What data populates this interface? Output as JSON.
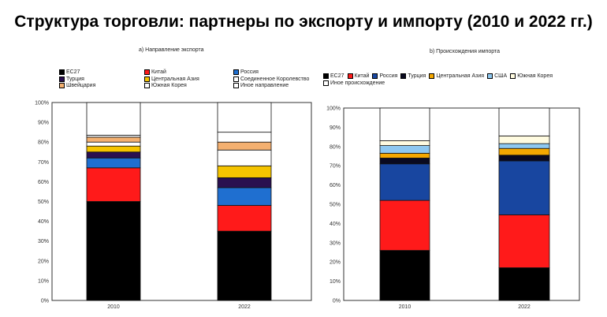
{
  "title": "Структура торговли: партнеры по экспорту и импорту (2010 и 2022 гг.)",
  "chart_data": [
    {
      "type": "bar",
      "stacked": true,
      "title": "a) Направление экспорта",
      "categories": [
        "2010",
        "2022"
      ],
      "ylim": [
        0,
        100
      ],
      "yticks": [
        "0%",
        "10%",
        "20%",
        "30%",
        "40%",
        "50%",
        "60%",
        "70%",
        "80%",
        "90%",
        "100%"
      ],
      "legend_placement": "top",
      "series": [
        {
          "name": "ЕС27",
          "color": "#000000",
          "values": [
            50,
            35
          ]
        },
        {
          "name": "Китай",
          "color": "#ff1a1a",
          "values": [
            17,
            13
          ]
        },
        {
          "name": "Россия",
          "color": "#1f6fd0",
          "values": [
            5,
            9
          ]
        },
        {
          "name": "Турция",
          "color": "#2a1050",
          "values": [
            3,
            5
          ]
        },
        {
          "name": "Центральная Азия",
          "color": "#f5c400",
          "values": [
            3,
            6
          ]
        },
        {
          "name": "Соединенное Королевство",
          "color": "#ffffff",
          "values": [
            2,
            8
          ]
        },
        {
          "name": "Швейцария",
          "color": "#f4b070",
          "values": [
            2.5,
            4
          ]
        },
        {
          "name": "Южная Корея",
          "color": "#ffffff",
          "values": [
            1,
            5
          ]
        },
        {
          "name": "Иное направление",
          "color": "#ffffff",
          "values": [
            16.5,
            15
          ]
        }
      ]
    },
    {
      "type": "bar",
      "stacked": true,
      "title": "b) Происхождения импорта",
      "categories": [
        "2010",
        "2022"
      ],
      "ylim": [
        0,
        100
      ],
      "yticks": [
        "0%",
        "10%",
        "20%",
        "30%",
        "40%",
        "50%",
        "60%",
        "70%",
        "80%",
        "90%",
        "100%"
      ],
      "legend_placement": "top",
      "series": [
        {
          "name": "ЕС27",
          "color": "#000000",
          "values": [
            26,
            17
          ]
        },
        {
          "name": "Китай",
          "color": "#ff1a1a",
          "values": [
            26,
            27.5
          ]
        },
        {
          "name": "Россия",
          "color": "#1846a0",
          "values": [
            19,
            28
          ]
        },
        {
          "name": "Турция",
          "color": "#0a0a20",
          "values": [
            3,
            3
          ]
        },
        {
          "name": "Центральная Азия",
          "color": "#f5a800",
          "values": [
            2.5,
            3.5
          ]
        },
        {
          "name": "США",
          "color": "#8ec8f0",
          "values": [
            4,
            2.5
          ]
        },
        {
          "name": "Южная Корея",
          "color": "#fffbe0",
          "values": [
            2.5,
            4
          ]
        },
        {
          "name": "Иное происхождение",
          "color": "#ffffff",
          "values": [
            17,
            14.5
          ]
        }
      ]
    }
  ]
}
